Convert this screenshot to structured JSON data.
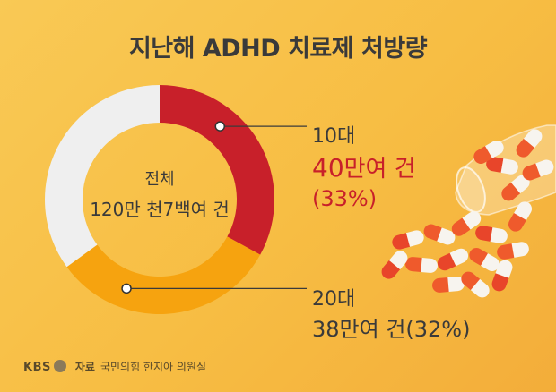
{
  "title": "지난해 ADHD 치료제 처방량",
  "center": {
    "line1": "전체",
    "line2": "120만 천7백여 건"
  },
  "annotations": {
    "teens": {
      "category": "10대",
      "value_num": "40",
      "value_rest": "만여 건",
      "percent": "(33%)"
    },
    "twenties": {
      "category": "20대",
      "value": "38만여 건(32%)"
    }
  },
  "footer": {
    "logo": "KBS",
    "source_label": "자료",
    "source": "국민의힘 한지아 의원실"
  },
  "colors": {
    "teens": "#c8202a",
    "twenties": "#f6a30f",
    "other": "#efefef",
    "background": "#f8c24d"
  },
  "chart_data": {
    "type": "pie",
    "title": "지난해 ADHD 치료제 처방량",
    "categories": [
      "10대",
      "20대",
      ""
    ],
    "values": [
      33,
      32,
      35
    ]
  }
}
